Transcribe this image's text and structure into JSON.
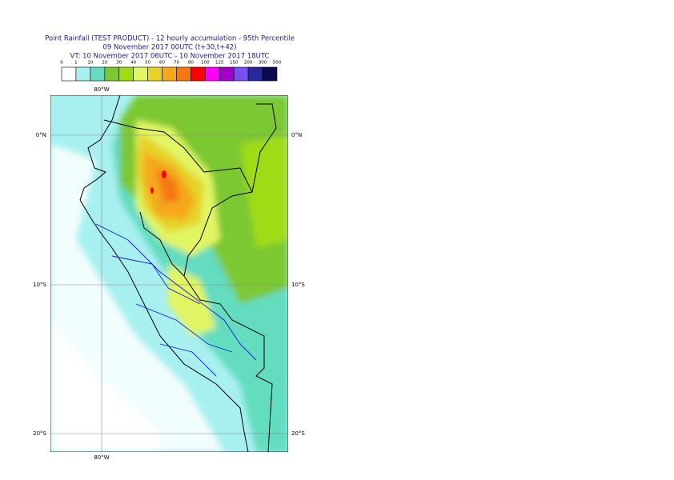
{
  "header": {
    "title": "Point Rainfall (TEST PRODUCT) - 12 hourly accumulation - 95th Percentile",
    "base_time": "09 November 2017 00UTC (t+30,t+42)",
    "valid_time": "VT: 10 November 2017 06UTC - 10 November 2017 18UTC"
  },
  "legend": {
    "levels": [
      0,
      1,
      10,
      20,
      30,
      40,
      50,
      60,
      70,
      80,
      100,
      125,
      150,
      200,
      300,
      500
    ],
    "colors": [
      "#ffffff",
      "#a8f0f0",
      "#64dcc0",
      "#7cc832",
      "#a0dc14",
      "#e2f564",
      "#e6d228",
      "#f5a81e",
      "#f57814",
      "#ff0000",
      "#ff00ff",
      "#a000c8",
      "#7850f0",
      "#28289e",
      "#0a0a50"
    ]
  },
  "map": {
    "lon_top": "80°W",
    "lon_bottom": "80°W",
    "lat_labels_left": [
      "0°N",
      "10°S",
      "20°S"
    ],
    "lat_labels_right": [
      "0°N",
      "10°S",
      "20°S"
    ]
  }
}
